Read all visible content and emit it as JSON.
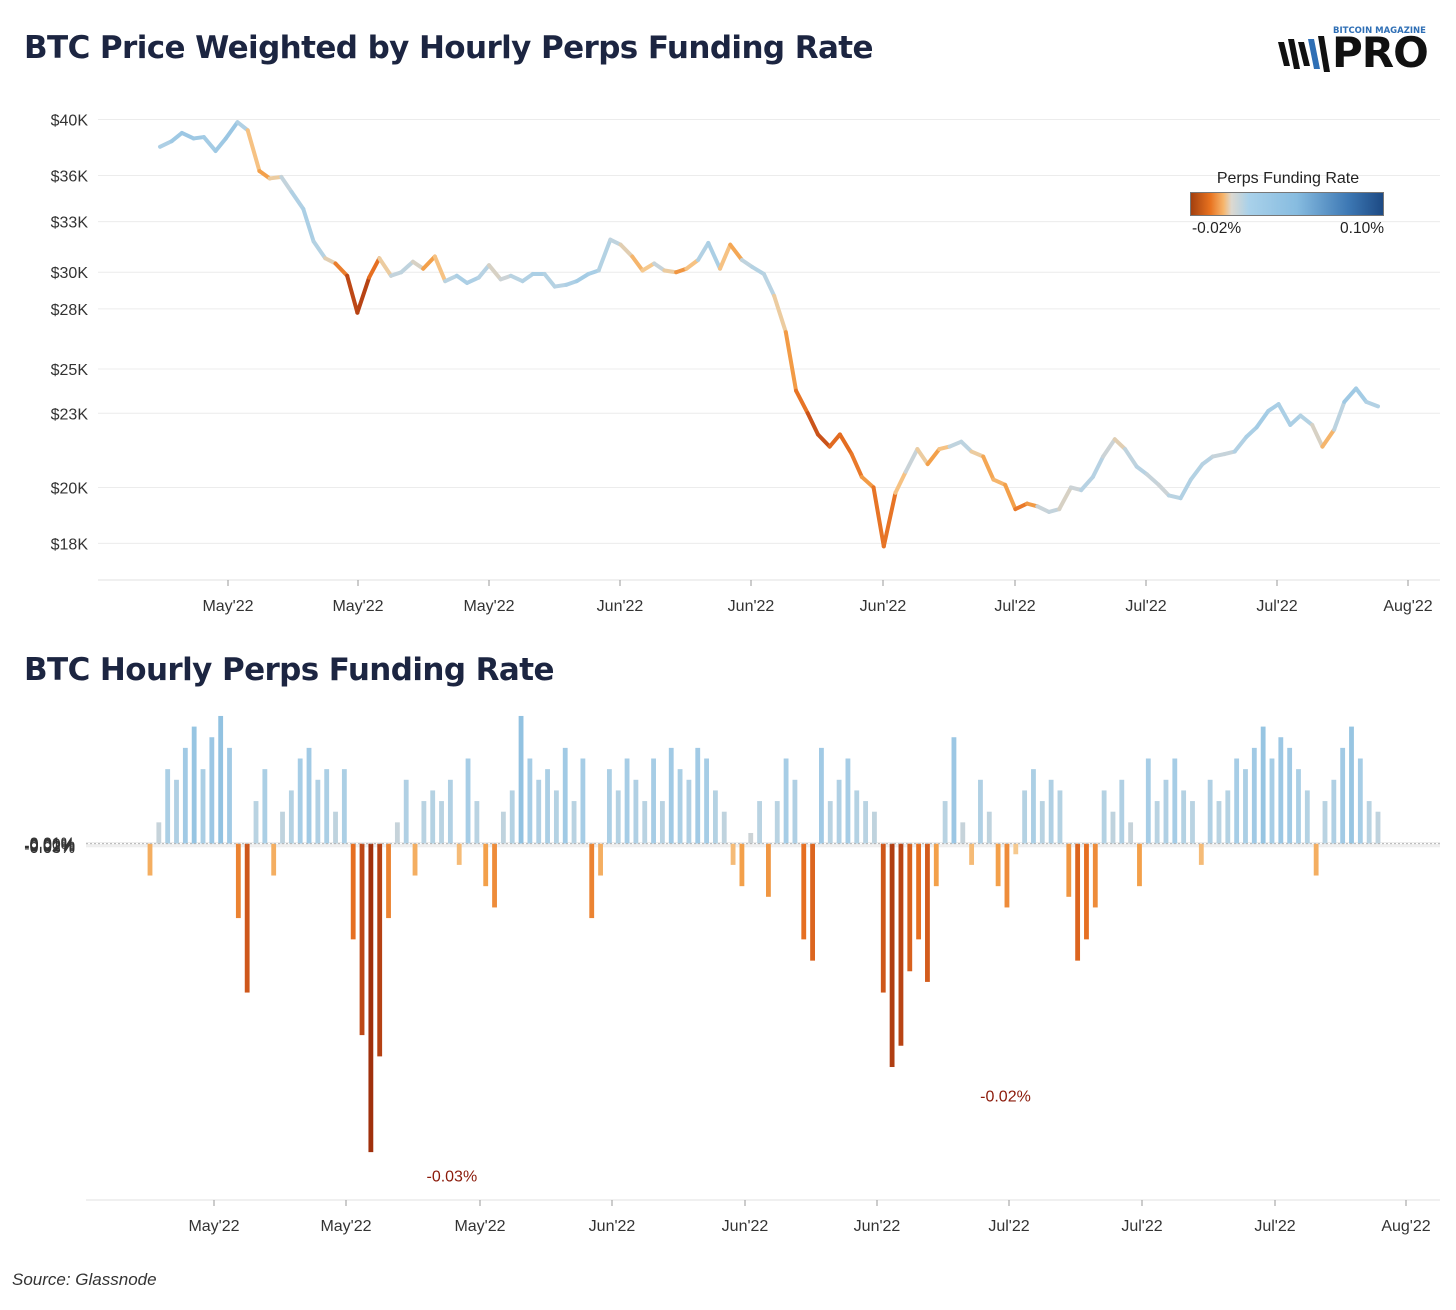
{
  "chart_data": [
    {
      "type": "line",
      "title": "BTC Price Weighted by Hourly Perps Funding Rate",
      "y_ticks": [
        "$40K",
        "$36K",
        "$33K",
        "$30K",
        "$28K",
        "$25K",
        "$23K",
        "$20K",
        "$18K"
      ],
      "x_ticks": [
        "May'22",
        "May'22",
        "May'22",
        "Jun'22",
        "Jun'22",
        "Jun'22",
        "Jul'22",
        "Jul'22",
        "Jul'22",
        "Aug'22"
      ],
      "y_scale": "log",
      "ylim": [
        16800,
        41500
      ],
      "grid": true,
      "color_legend": {
        "title": "Perps Funding Rate",
        "min_label": "-0.02%",
        "max_label": "0.10%",
        "min": -0.02,
        "max": 0.1
      },
      "series": [
        {
          "x": [
            0.0,
            0.8,
            1.5,
            2.3,
            3.0,
            3.8,
            4.5,
            5.3,
            6.0,
            6.8,
            7.5,
            8.3,
            9.0,
            9.8,
            10.5,
            11.3,
            12.0,
            12.8,
            13.5,
            14.3,
            15.0,
            15.8,
            16.5,
            17.3,
            18.0,
            18.8,
            19.5,
            20.3,
            21.0,
            21.8,
            22.5,
            23.3,
            24.0,
            24.8,
            25.5,
            26.3,
            27.0,
            27.8,
            28.5,
            29.3,
            30.0,
            30.8,
            31.5,
            32.3,
            33.0,
            33.8,
            34.5,
            35.3,
            36.0,
            36.8,
            37.5,
            38.3,
            39.0,
            39.8,
            40.5,
            41.3,
            42.0,
            42.8,
            43.5,
            44.3,
            45.0,
            45.8,
            46.5,
            47.3,
            48.0,
            48.8,
            49.5,
            50.3,
            51.0,
            51.8,
            52.5,
            53.3,
            54.0,
            54.8,
            55.5,
            56.3,
            57.0,
            57.8,
            58.5,
            59.3,
            60.0,
            60.8,
            61.5,
            62.3,
            63.0,
            63.8,
            64.5,
            65.3,
            66.0,
            66.8,
            67.5,
            68.3,
            69.0,
            69.8,
            70.5,
            71.3,
            72.0,
            72.8,
            73.5,
            74.3,
            75.0,
            75.8,
            76.5,
            77.3,
            78.0,
            78.8,
            79.5,
            80.3,
            81.0,
            81.8,
            82.5,
            83.3
          ],
          "y": [
            38000,
            38400,
            39000,
            38600,
            38700,
            37700,
            38600,
            39800,
            39200,
            36300,
            35800,
            35900,
            34900,
            33800,
            31800,
            30800,
            30500,
            29800,
            27800,
            29700,
            30800,
            29800,
            30000,
            30600,
            30200,
            30900,
            29500,
            29800,
            29400,
            29700,
            30400,
            29600,
            29800,
            29500,
            29900,
            29900,
            29200,
            29300,
            29500,
            29900,
            30100,
            31900,
            31600,
            30900,
            30100,
            30500,
            30100,
            30000,
            30200,
            30700,
            31700,
            30200,
            31600,
            30700,
            30300,
            29900,
            28700,
            26800,
            24000,
            23000,
            22100,
            21600,
            22100,
            21300,
            20400,
            20000,
            17900,
            19800,
            20600,
            21500,
            20900,
            21500,
            21600,
            21800,
            21400,
            21200,
            20300,
            20100,
            19200,
            19400,
            19300,
            19100,
            19200,
            20000,
            19900,
            20400,
            21200,
            21900,
            21500,
            20800,
            20500,
            20100,
            19700,
            19600,
            20300,
            20900,
            21200,
            21300,
            21400,
            22000,
            22400,
            23100,
            23400,
            22500,
            22900,
            22500,
            21600,
            22300,
            23500,
            24100,
            23500,
            23300
          ],
          "funding": [
            0.005,
            0.008,
            0.011,
            0.009,
            0.01,
            0.007,
            0.012,
            0.009,
            0.003,
            -0.006,
            -0.002,
            0.001,
            0.004,
            0.008,
            0.006,
            0.004,
            -0.004,
            -0.011,
            -0.025,
            -0.014,
            -0.004,
            0.003,
            0.002,
            0.004,
            -0.003,
            -0.005,
            0.002,
            0.006,
            0.008,
            0.005,
            0.004,
            -0.003,
            0.005,
            0.003,
            0.008,
            0.006,
            0.004,
            0.005,
            0.008,
            0.009,
            0.006,
            0.004,
            0.002,
            -0.002,
            -0.003,
            0.001,
            0.003,
            -0.004,
            -0.006,
            0.003,
            0.008,
            0.006,
            -0.009,
            0.002,
            0.004,
            0.006,
            0.002,
            -0.003,
            -0.006,
            -0.011,
            -0.018,
            -0.012,
            -0.008,
            -0.011,
            -0.005,
            -0.004,
            -0.013,
            -0.004,
            0.001,
            0.002,
            -0.003,
            -0.005,
            0.002,
            0.004,
            0.003,
            -0.004,
            -0.003,
            -0.002,
            -0.006,
            -0.01,
            0.001,
            0.002,
            0.003,
            -0.002,
            0.004,
            0.005,
            0.004,
            -0.002,
            0.002,
            0.004,
            0.005,
            -0.001,
            0.003,
            0.005,
            0.006,
            0.004,
            0.005,
            -0.001,
            0.005,
            0.006,
            0.008,
            0.009,
            0.006,
            0.008,
            0.006,
            0.004,
            -0.003,
            -0.002,
            0.009,
            0.01,
            0.007,
            0.004
          ]
        }
      ]
    },
    {
      "type": "bar",
      "title": "BTC Hourly Perps Funding Rate",
      "y_ticks": [
        "0.01%",
        "0.00%",
        "-0.01%",
        "-0.02%",
        "-0.03%"
      ],
      "x_ticks": [
        "May'22",
        "May'22",
        "May'22",
        "Jun'22",
        "Jun'22",
        "Jun'22",
        "Jul'22",
        "Jul'22",
        "Jul'22",
        "Aug'22"
      ],
      "ylim": [
        -0.0335,
        0.0135
      ],
      "grid": true,
      "annotations": [
        {
          "text": "-0.03%",
          "x": 20.5,
          "y": -0.0295
        },
        {
          "text": "-0.02%",
          "x": 58.1,
          "y": -0.022
        }
      ],
      "series": [
        {
          "x": [
            0.0,
            0.6,
            1.2,
            1.8,
            2.4,
            3.0,
            3.6,
            4.2,
            4.8,
            5.4,
            6.0,
            6.6,
            7.2,
            7.8,
            8.4,
            9.0,
            9.6,
            10.2,
            10.8,
            11.4,
            12.0,
            12.6,
            13.2,
            13.8,
            14.4,
            15.0,
            15.6,
            16.2,
            16.8,
            17.4,
            18.0,
            18.6,
            19.2,
            19.8,
            20.4,
            21.0,
            21.6,
            22.2,
            22.8,
            23.4,
            24.0,
            24.6,
            25.2,
            25.8,
            26.4,
            27.0,
            27.6,
            28.2,
            28.8,
            29.4,
            30.0,
            30.6,
            31.2,
            31.8,
            32.4,
            33.0,
            33.6,
            34.2,
            34.8,
            35.4,
            36.0,
            36.6,
            37.2,
            37.8,
            38.4,
            39.0,
            39.6,
            40.2,
            40.8,
            41.4,
            42.0,
            42.6,
            43.2,
            43.8,
            44.4,
            45.0,
            45.6,
            46.2,
            46.8,
            47.4,
            48.0,
            48.6,
            49.2,
            49.8,
            50.4,
            51.0,
            51.6,
            52.2,
            52.8,
            53.4,
            54.0,
            54.6,
            55.2,
            55.8,
            56.4,
            57.0,
            57.6,
            58.2,
            58.8,
            59.4,
            60.0,
            60.6,
            61.2,
            61.8,
            62.4,
            63.0,
            63.6,
            64.2,
            64.8,
            65.4,
            66.0,
            66.6,
            67.2,
            67.8,
            68.4,
            69.0,
            69.6,
            70.2,
            70.8,
            71.4,
            72.0,
            72.6,
            73.2,
            73.8,
            74.4,
            75.0,
            75.6,
            76.2,
            76.8,
            77.4,
            78.0,
            78.6,
            79.2,
            79.8,
            80.4,
            81.0,
            81.6,
            82.2,
            82.8,
            83.4
          ],
          "values": [
            -0.003,
            0.002,
            0.007,
            0.006,
            0.009,
            0.011,
            0.007,
            0.01,
            0.012,
            0.009,
            -0.007,
            -0.014,
            0.004,
            0.007,
            -0.003,
            0.003,
            0.005,
            0.008,
            0.009,
            0.006,
            0.007,
            0.003,
            0.007,
            -0.009,
            -0.018,
            -0.029,
            -0.02,
            -0.007,
            0.002,
            0.006,
            -0.003,
            0.004,
            0.005,
            0.004,
            0.006,
            -0.002,
            0.008,
            0.004,
            -0.004,
            -0.006,
            0.003,
            0.005,
            0.012,
            0.008,
            0.006,
            0.007,
            0.005,
            0.009,
            0.004,
            0.008,
            -0.007,
            -0.003,
            0.007,
            0.005,
            0.008,
            0.006,
            0.004,
            0.008,
            0.004,
            0.009,
            0.007,
            0.006,
            0.009,
            0.008,
            0.005,
            0.003,
            -0.002,
            -0.004,
            0.001,
            0.004,
            -0.005,
            0.004,
            0.008,
            0.006,
            -0.009,
            -0.011,
            0.009,
            0.004,
            0.006,
            0.008,
            0.005,
            0.004,
            0.003,
            -0.014,
            -0.021,
            -0.019,
            -0.012,
            -0.009,
            -0.013,
            -0.004,
            0.004,
            0.01,
            0.002,
            -0.002,
            0.006,
            0.003,
            -0.004,
            -0.006,
            -0.001,
            0.005,
            0.007,
            0.004,
            0.006,
            0.005,
            -0.005,
            -0.011,
            -0.009,
            -0.006,
            0.005,
            0.003,
            0.006,
            0.002,
            -0.004,
            0.008,
            0.004,
            0.006,
            0.008,
            0.005,
            0.004,
            -0.002,
            0.006,
            0.004,
            0.005,
            0.008,
            0.007,
            0.009,
            0.011,
            0.008,
            0.01,
            0.009,
            0.007,
            0.005,
            -0.003,
            0.004,
            0.006,
            0.009,
            0.011,
            0.008,
            0.004,
            0.003
          ]
        }
      ]
    }
  ],
  "logo": {
    "small_text": "BITCOIN MAGAZINE",
    "big_text": "PRO"
  },
  "source": "Source: Glassnode",
  "colors": {
    "title": "#1c2541",
    "grid": "#ececec",
    "zero_line": "#b5b5b5",
    "annotation": "#8b1a0a"
  }
}
